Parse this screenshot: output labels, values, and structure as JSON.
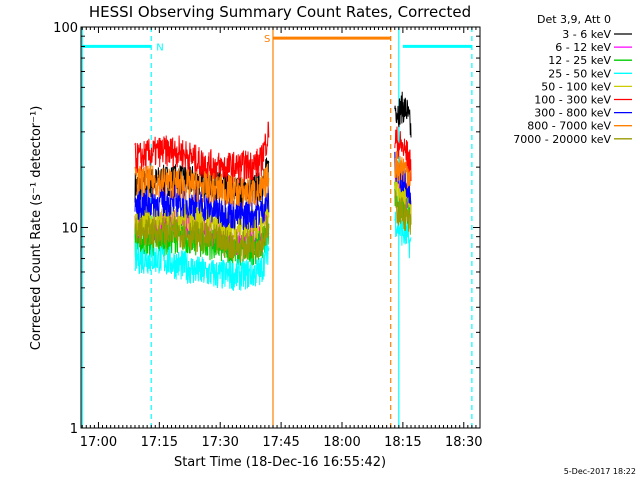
{
  "chart_data": {
    "type": "line",
    "title": "HESSI Observing Summary Count Rates, Corrected",
    "xlabel": "Start Time (18-Dec-16 16:55:42)",
    "ylabel": "Corrected Count Rate (s⁻¹ detector⁻¹)",
    "scale": {
      "y": "log",
      "x": "time"
    },
    "xlim": [
      "16:55:42",
      "18:34:00"
    ],
    "ylim": [
      1,
      100
    ],
    "x_ticks": [
      "17:00",
      "17:15",
      "17:30",
      "17:45",
      "18:00",
      "18:15",
      "18:30"
    ],
    "y_ticks": [
      "1",
      "10",
      "100"
    ],
    "footer": "5-Dec-2017 18:22",
    "legend": {
      "placement": "right",
      "header": "Det 3,9, Att 0",
      "entries": [
        {
          "label": "3 - 6 keV",
          "color": "#000000"
        },
        {
          "label": "6 - 12 keV",
          "color": "#ff00ff"
        },
        {
          "label": "12 - 25 keV",
          "color": "#00cc00"
        },
        {
          "label": "25 - 50 keV",
          "color": "#00ffff"
        },
        {
          "label": "50 - 100 keV",
          "color": "#cccc00"
        },
        {
          "label": "100 - 300 keV",
          "color": "#ff0000"
        },
        {
          "label": "300 - 800 keV",
          "color": "#0000ff"
        },
        {
          "label": "800 - 7000 keV",
          "color": "#ff7f00"
        },
        {
          "label": "7000 - 20000 keV",
          "color": "#999900"
        }
      ]
    },
    "annotations": [
      {
        "label": "N",
        "color": "#00ffff",
        "from": "16:56",
        "to": "17:13",
        "y": 80
      },
      {
        "label": "",
        "color": "#00ffff",
        "from": "18:15",
        "to": "18:32",
        "y": 80
      },
      {
        "label": "S",
        "color": "#ff7f00",
        "from": "17:43",
        "to": "18:12",
        "y": 88
      }
    ],
    "markers": [
      {
        "time": "16:56",
        "color": "#00ffff",
        "style": "solid"
      },
      {
        "time": "17:13",
        "color": "#00ffff",
        "style": "dashed"
      },
      {
        "time": "17:43",
        "color": "#ff7f00",
        "style": "solid"
      },
      {
        "time": "18:12",
        "color": "#ff7f00",
        "style": "dashed"
      },
      {
        "time": "18:14",
        "color": "#00ffff",
        "style": "solid"
      },
      {
        "time": "18:32",
        "color": "#00ffff",
        "style": "dashed"
      }
    ],
    "segments": [
      {
        "from": "17:09",
        "to": "17:42"
      },
      {
        "from": "18:13",
        "to": "18:17"
      }
    ],
    "series": [
      {
        "name": "3 - 6 keV",
        "color": "#000000",
        "x": [
          "17:09",
          "17:15",
          "17:20",
          "17:25",
          "17:30",
          "17:35",
          "17:40",
          "17:42",
          "18:13",
          "18:14",
          "18:15",
          "18:16",
          "18:17"
        ],
        "y": [
          16,
          17,
          17.5,
          17,
          16,
          15,
          16,
          20,
          40,
          38,
          40,
          38,
          30
        ]
      },
      {
        "name": "6 - 12 keV",
        "color": "#ff00ff",
        "x": [
          "17:09",
          "17:15",
          "17:20",
          "17:25",
          "17:30",
          "17:35",
          "17:40",
          "17:42",
          "18:13",
          "18:14",
          "18:15",
          "18:16",
          "18:17"
        ],
        "y": [
          10,
          10,
          10.5,
          10,
          9,
          8.5,
          9,
          11,
          18,
          16,
          16,
          15,
          13
        ]
      },
      {
        "name": "12 - 25 keV",
        "color": "#00cc00",
        "x": [
          "17:09",
          "17:15",
          "17:20",
          "17:25",
          "17:30",
          "17:35",
          "17:40",
          "17:42",
          "18:13",
          "18:14",
          "18:15",
          "18:16",
          "18:17"
        ],
        "y": [
          8.5,
          8.5,
          9,
          8.5,
          8,
          7.5,
          8,
          10,
          15,
          13,
          13,
          12,
          10
        ]
      },
      {
        "name": "25 - 50 keV",
        "color": "#00ffff",
        "x": [
          "17:09",
          "17:15",
          "17:20",
          "17:25",
          "17:30",
          "17:35",
          "17:40",
          "17:42",
          "18:13",
          "18:14",
          "18:15",
          "18:16",
          "18:17"
        ],
        "y": [
          7,
          7,
          6.5,
          6,
          5.8,
          5.8,
          6,
          8,
          11,
          10,
          9.5,
          9,
          8
        ]
      },
      {
        "name": "50 - 100 keV",
        "color": "#cccc00",
        "x": [
          "17:09",
          "17:15",
          "17:20",
          "17:25",
          "17:30",
          "17:35",
          "17:40",
          "17:42",
          "18:13",
          "18:14",
          "18:15",
          "18:16",
          "18:17"
        ],
        "y": [
          11,
          11,
          11.5,
          11,
          10.5,
          10,
          10.5,
          13,
          17,
          15,
          15,
          14,
          12
        ]
      },
      {
        "name": "100 - 300 keV",
        "color": "#ff0000",
        "x": [
          "17:09",
          "17:15",
          "17:20",
          "17:25",
          "17:30",
          "17:35",
          "17:40",
          "17:42",
          "18:13",
          "18:14",
          "18:15",
          "18:16",
          "18:17"
        ],
        "y": [
          22,
          24,
          24,
          21,
          20,
          20,
          21,
          30,
          28,
          26,
          25,
          23,
          20
        ]
      },
      {
        "name": "300 - 800 keV",
        "color": "#0000ff",
        "x": [
          "17:09",
          "17:15",
          "17:20",
          "17:25",
          "17:30",
          "17:35",
          "17:40",
          "17:42",
          "18:13",
          "18:14",
          "18:15",
          "18:16",
          "18:17"
        ],
        "y": [
          13,
          13.5,
          13.5,
          13,
          12,
          11.5,
          12,
          14,
          20,
          18,
          18,
          17,
          15
        ]
      },
      {
        "name": "800 - 7000 keV",
        "color": "#ff7f00",
        "x": [
          "17:09",
          "17:15",
          "17:20",
          "17:25",
          "17:30",
          "17:35",
          "17:40",
          "17:42",
          "18:13",
          "18:14",
          "18:15",
          "18:16",
          "18:17"
        ],
        "y": [
          17,
          17,
          16.5,
          16,
          15.5,
          15,
          15,
          18,
          21,
          20,
          20,
          19,
          18
        ]
      },
      {
        "name": "7000 - 20000 keV",
        "color": "#999900",
        "x": [
          "17:09",
          "17:15",
          "17:20",
          "17:25",
          "17:30",
          "17:35",
          "17:40",
          "17:42",
          "18:13",
          "18:14",
          "18:15",
          "18:16",
          "18:17"
        ],
        "y": [
          9.5,
          9.5,
          9.5,
          9,
          8.5,
          8,
          8.5,
          10,
          13,
          12,
          12,
          11,
          10
        ]
      }
    ]
  }
}
